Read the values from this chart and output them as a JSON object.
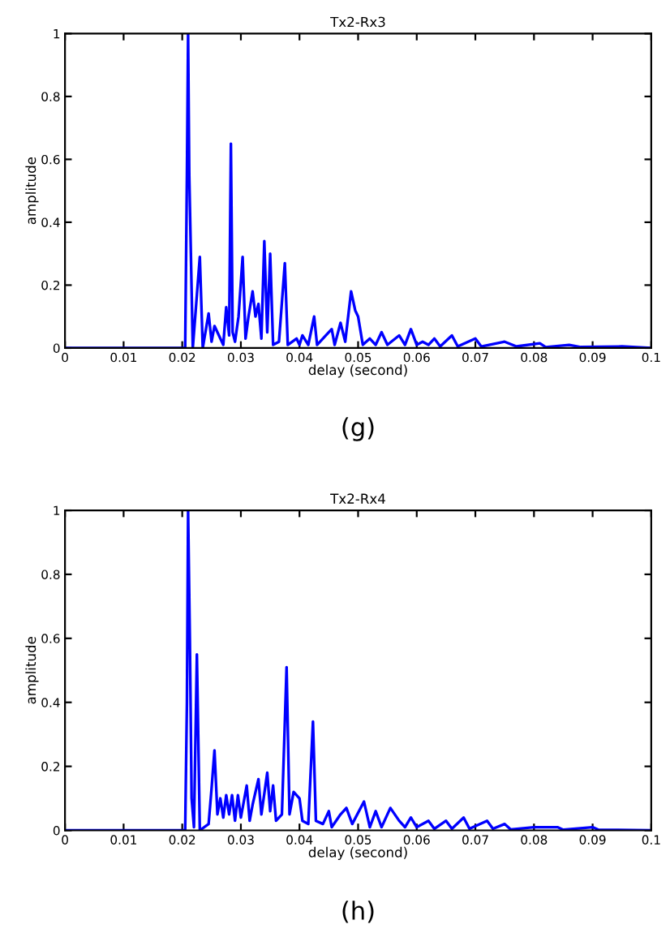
{
  "chart_data": [
    {
      "type": "line",
      "title": "Tx2-Rx3",
      "xlabel": "delay (second)",
      "ylabel": "amplitude",
      "annotations": [
        "(g)"
      ],
      "xlim": [
        0,
        0.1
      ],
      "ylim": [
        0,
        1
      ],
      "xticks": [
        0,
        0.01,
        0.02,
        0.03,
        0.04,
        0.05,
        0.06,
        0.07,
        0.08,
        0.09,
        0.1
      ],
      "yticks": [
        0,
        0.2,
        0.4,
        0.6,
        0.8,
        1
      ],
      "grid": false,
      "legend": false,
      "series": [
        {
          "color": "#0000ff",
          "x": [
            0,
            0.0205,
            0.0208,
            0.021,
            0.0212,
            0.0218,
            0.023,
            0.0235,
            0.0245,
            0.025,
            0.0255,
            0.026,
            0.027,
            0.0275,
            0.028,
            0.0283,
            0.0286,
            0.029,
            0.0296,
            0.0303,
            0.0308,
            0.0313,
            0.032,
            0.0325,
            0.033,
            0.0335,
            0.034,
            0.0345,
            0.035,
            0.0355,
            0.0365,
            0.0375,
            0.038,
            0.0395,
            0.04,
            0.0405,
            0.0415,
            0.0425,
            0.043,
            0.0445,
            0.0455,
            0.046,
            0.047,
            0.0478,
            0.0488,
            0.0495,
            0.05,
            0.0508,
            0.052,
            0.053,
            0.054,
            0.055,
            0.057,
            0.058,
            0.059,
            0.06,
            0.061,
            0.062,
            0.063,
            0.064,
            0.066,
            0.067,
            0.07,
            0.071,
            0.075,
            0.077,
            0.081,
            0.082,
            0.086,
            0.088,
            0.095,
            0.1
          ],
          "values": [
            0,
            0,
            0.55,
            1,
            0.55,
            0,
            0.29,
            0,
            0.11,
            0.02,
            0.07,
            0.05,
            0.01,
            0.13,
            0.04,
            0.65,
            0.05,
            0.02,
            0.1,
            0.29,
            0.03,
            0.1,
            0.18,
            0.1,
            0.14,
            0.03,
            0.34,
            0.05,
            0.3,
            0.01,
            0.02,
            0.27,
            0.01,
            0.03,
            0.01,
            0.04,
            0.01,
            0.1,
            0.01,
            0.04,
            0.06,
            0.01,
            0.08,
            0.02,
            0.18,
            0.12,
            0.1,
            0.01,
            0.03,
            0.01,
            0.05,
            0.01,
            0.04,
            0.01,
            0.06,
            0.01,
            0.02,
            0.01,
            0.03,
            0.005,
            0.04,
            0.005,
            0.03,
            0.005,
            0.02,
            0.005,
            0.015,
            0.003,
            0.01,
            0.003,
            0.005,
            0
          ]
        }
      ]
    },
    {
      "type": "line",
      "title": "Tx2-Rx4",
      "xlabel": "delay (second)",
      "ylabel": "amplitude",
      "annotations": [
        "(h)"
      ],
      "xlim": [
        0,
        0.1
      ],
      "ylim": [
        0,
        1
      ],
      "xticks": [
        0,
        0.01,
        0.02,
        0.03,
        0.04,
        0.05,
        0.06,
        0.07,
        0.08,
        0.09,
        0.1
      ],
      "yticks": [
        0,
        0.2,
        0.4,
        0.6,
        0.8,
        1
      ],
      "grid": false,
      "legend": false,
      "series": [
        {
          "color": "#0000ff",
          "x": [
            0,
            0.0205,
            0.0208,
            0.021,
            0.0213,
            0.0216,
            0.022,
            0.0225,
            0.023,
            0.0245,
            0.025,
            0.0255,
            0.026,
            0.0265,
            0.027,
            0.0275,
            0.028,
            0.0285,
            0.029,
            0.0295,
            0.03,
            0.031,
            0.0315,
            0.032,
            0.033,
            0.0335,
            0.0345,
            0.035,
            0.0355,
            0.036,
            0.037,
            0.0378,
            0.0383,
            0.039,
            0.04,
            0.0405,
            0.0415,
            0.0423,
            0.0428,
            0.044,
            0.045,
            0.0455,
            0.047,
            0.048,
            0.049,
            0.051,
            0.052,
            0.053,
            0.054,
            0.0555,
            0.057,
            0.058,
            0.059,
            0.06,
            0.062,
            0.063,
            0.065,
            0.066,
            0.068,
            0.069,
            0.072,
            0.073,
            0.075,
            0.076,
            0.08,
            0.084,
            0.085,
            0.09,
            0.091,
            0.1
          ],
          "values": [
            0,
            0,
            0.4,
            1,
            0.6,
            0.1,
            0.01,
            0.55,
            0,
            0.02,
            0.13,
            0.25,
            0.05,
            0.1,
            0.04,
            0.11,
            0.05,
            0.11,
            0.03,
            0.11,
            0.04,
            0.14,
            0.03,
            0.08,
            0.16,
            0.05,
            0.18,
            0.06,
            0.14,
            0.03,
            0.05,
            0.51,
            0.05,
            0.12,
            0.1,
            0.03,
            0.02,
            0.34,
            0.03,
            0.02,
            0.06,
            0.01,
            0.05,
            0.07,
            0.02,
            0.09,
            0.01,
            0.06,
            0.01,
            0.07,
            0.03,
            0.01,
            0.04,
            0.01,
            0.03,
            0.005,
            0.03,
            0.005,
            0.04,
            0.005,
            0.03,
            0.005,
            0.02,
            0.003,
            0.01,
            0.01,
            0.002,
            0.01,
            0.002,
            0
          ]
        }
      ]
    }
  ]
}
